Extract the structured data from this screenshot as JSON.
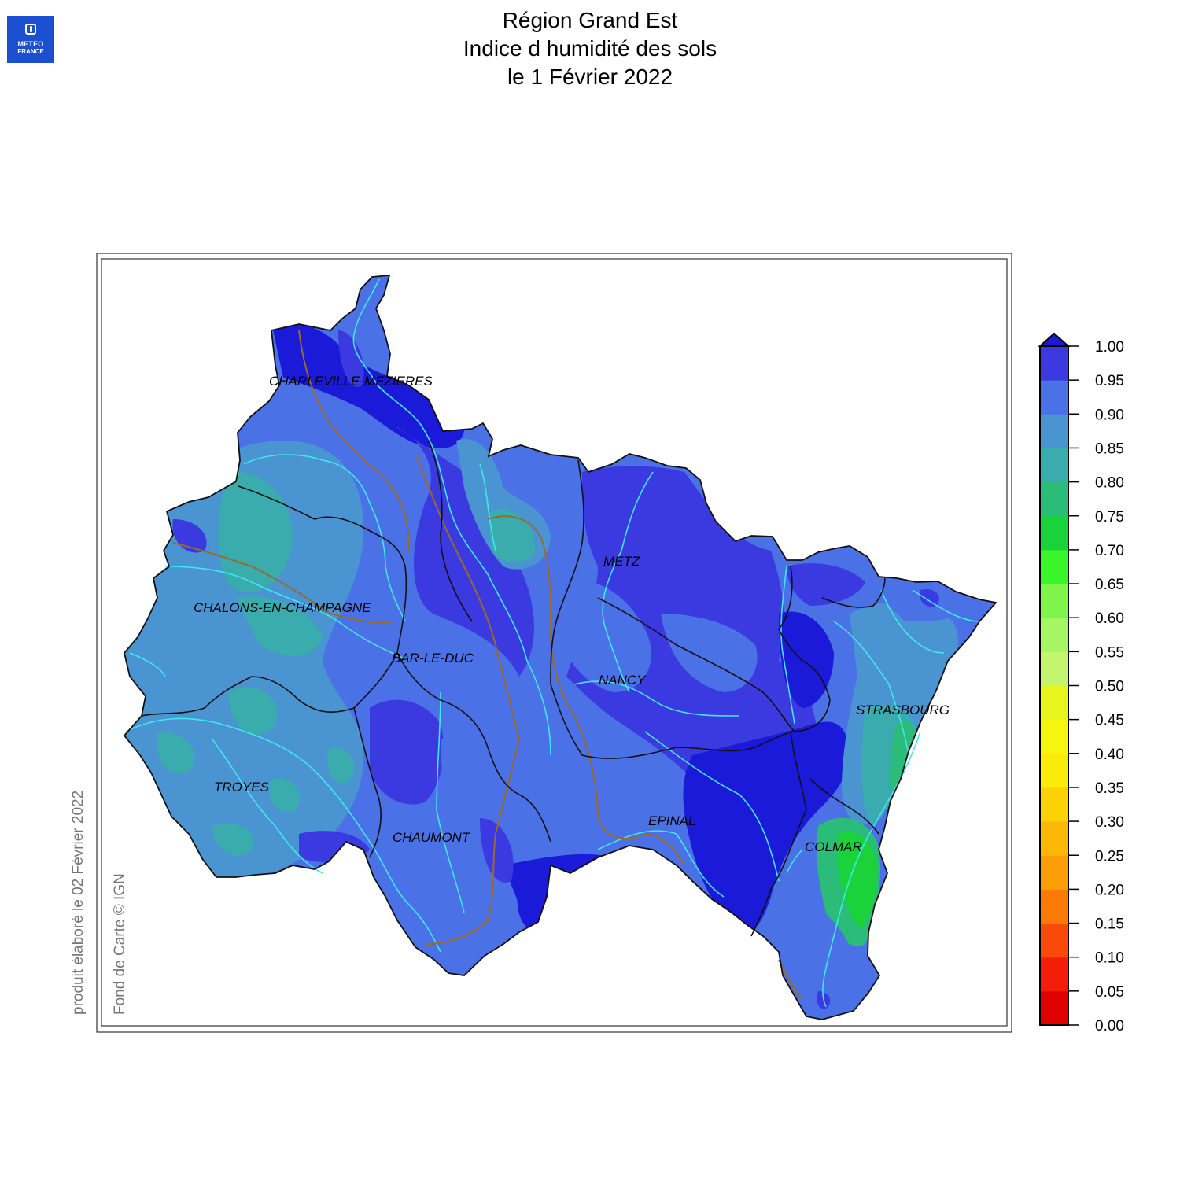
{
  "logo": {
    "line1": "METEO",
    "line2": "FRANCE",
    "icon": "meteo-france-logo-icon",
    "color": "#1a4fd1"
  },
  "title": {
    "line1": "Région Grand Est",
    "line2": "Indice d humidité des sols",
    "line3": "le 1 Février 2022"
  },
  "credits": {
    "produced": "produit élaboré le 02 Février 2022",
    "basemap": "Fond de Carte © IGN"
  },
  "cities": [
    {
      "id": "charleville",
      "name": "CHARLEVILLE-MEZIERES"
    },
    {
      "id": "metz",
      "name": "METZ"
    },
    {
      "id": "chalons",
      "name": "CHALONS-EN-CHAMPAGNE"
    },
    {
      "id": "barleduc",
      "name": "BAR-LE-DUC"
    },
    {
      "id": "nancy",
      "name": "NANCY"
    },
    {
      "id": "strasbourg",
      "name": "STRASBOURG"
    },
    {
      "id": "troyes",
      "name": "TROYES"
    },
    {
      "id": "chaumont",
      "name": "CHAUMONT"
    },
    {
      "id": "epinal",
      "name": "EPINAL"
    },
    {
      "id": "colmar",
      "name": "COLMAR"
    }
  ],
  "legend": {
    "ticks": [
      "0.00",
      "0.05",
      "0.10",
      "0.15",
      "0.20",
      "0.25",
      "0.30",
      "0.35",
      "0.40",
      "0.45",
      "0.50",
      "0.55",
      "0.60",
      "0.65",
      "0.70",
      "0.75",
      "0.80",
      "0.85",
      "0.90",
      "0.95",
      "1.00"
    ],
    "colors": [
      "#e00000",
      "#f51d0a",
      "#fa4a0a",
      "#fb7a05",
      "#fb9d05",
      "#fbb705",
      "#fbd205",
      "#fbeb0a",
      "#f5f50f",
      "#e6f51e",
      "#c3f56e",
      "#a5f565",
      "#7ef548",
      "#3af52a",
      "#1ad23a",
      "#2abc78",
      "#3aacae",
      "#4a94d2",
      "#4a71e6",
      "#3a3ae0",
      "#1a1ad8"
    ],
    "arrow_color": "#1a1ad8"
  }
}
